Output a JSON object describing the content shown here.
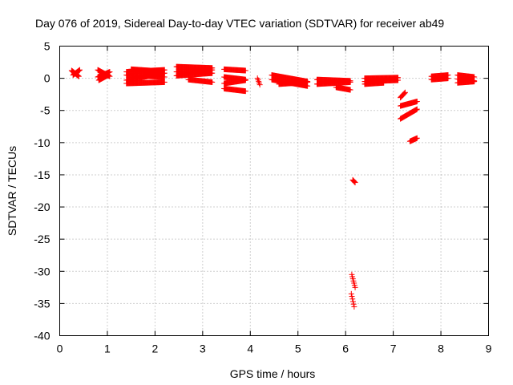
{
  "chart_data": {
    "type": "scatter",
    "title": "Day 076 of 2019, Sidereal Day-to-day VTEC variation (SDTVAR) for receiver ab49",
    "xlabel": "GPS time / hours",
    "ylabel": "SDTVAR / TECUs",
    "xlim": [
      0,
      9
    ],
    "ylim": [
      -40,
      5
    ],
    "xticks": [
      0,
      1,
      2,
      3,
      4,
      5,
      6,
      7,
      8,
      9
    ],
    "yticks": [
      5,
      0,
      -5,
      -10,
      -15,
      -20,
      -25,
      -30,
      -35,
      -40
    ],
    "grid": true,
    "marker": "plus",
    "color": "#ff0000",
    "series": [
      {
        "name": "SDTVAR",
        "segments": [
          {
            "x0": 0.25,
            "x1": 0.4,
            "y0": 1.2,
            "y1": 0.3
          },
          {
            "x0": 0.28,
            "x1": 0.42,
            "y0": 0.5,
            "y1": 1.3
          },
          {
            "x0": 0.8,
            "x1": 1.05,
            "y0": 1.3,
            "y1": 0.3
          },
          {
            "x0": 0.8,
            "x1": 1.05,
            "y0": 0.2,
            "y1": 1.0
          },
          {
            "x0": 0.82,
            "x1": 1.02,
            "y0": -0.3,
            "y1": 0.5
          },
          {
            "x0": 1.4,
            "x1": 2.2,
            "y0": 1.0,
            "y1": 1.3
          },
          {
            "x0": 1.4,
            "x1": 2.2,
            "y0": 0.5,
            "y1": 0.2
          },
          {
            "x0": 1.4,
            "x1": 2.2,
            "y0": -0.3,
            "y1": 0.8
          },
          {
            "x0": 1.4,
            "x1": 2.2,
            "y0": -0.8,
            "y1": -0.6
          },
          {
            "x0": 1.5,
            "x1": 2.1,
            "y0": 1.4,
            "y1": 1.1
          },
          {
            "x0": 2.45,
            "x1": 3.2,
            "y0": 1.8,
            "y1": 1.6
          },
          {
            "x0": 2.45,
            "x1": 3.2,
            "y0": 1.0,
            "y1": 1.3
          },
          {
            "x0": 2.45,
            "x1": 3.2,
            "y0": 0.4,
            "y1": 0.8
          },
          {
            "x0": 2.7,
            "x1": 3.2,
            "y0": -0.2,
            "y1": -0.6
          },
          {
            "x0": 3.45,
            "x1": 3.9,
            "y0": 1.4,
            "y1": 1.2
          },
          {
            "x0": 3.45,
            "x1": 3.9,
            "y0": 0.2,
            "y1": -0.2
          },
          {
            "x0": 3.45,
            "x1": 3.9,
            "y0": -0.8,
            "y1": -0.3
          },
          {
            "x0": 3.45,
            "x1": 3.9,
            "y0": -1.6,
            "y1": -2.0
          },
          {
            "x0": 4.15,
            "x1": 4.2,
            "y0": 0.0,
            "y1": -1.0
          },
          {
            "x0": 4.45,
            "x1": 5.2,
            "y0": 0.5,
            "y1": -0.5
          },
          {
            "x0": 4.45,
            "x1": 5.2,
            "y0": -0.2,
            "y1": -1.2
          },
          {
            "x0": 4.6,
            "x1": 5.2,
            "y0": -0.9,
            "y1": -0.6
          },
          {
            "x0": 5.4,
            "x1": 6.1,
            "y0": -0.2,
            "y1": -0.4
          },
          {
            "x0": 5.4,
            "x1": 6.1,
            "y0": -0.9,
            "y1": -0.6
          },
          {
            "x0": 5.8,
            "x1": 6.1,
            "y0": -1.4,
            "y1": -1.8
          },
          {
            "x0": 6.15,
            "x1": 6.2,
            "y0": -15.8,
            "y1": -16.2
          },
          {
            "x0": 6.13,
            "x1": 6.2,
            "y0": -30.5,
            "y1": -32.5
          },
          {
            "x0": 6.12,
            "x1": 6.18,
            "y0": -33.5,
            "y1": -35.5
          },
          {
            "x0": 6.4,
            "x1": 7.1,
            "y0": 0.0,
            "y1": 0.1
          },
          {
            "x0": 6.4,
            "x1": 7.1,
            "y0": -0.5,
            "y1": -0.3
          },
          {
            "x0": 6.4,
            "x1": 6.8,
            "y0": -0.9,
            "y1": -0.7
          },
          {
            "x0": 7.15,
            "x1": 7.25,
            "y0": -3.0,
            "y1": -2.2
          },
          {
            "x0": 7.15,
            "x1": 7.5,
            "y0": -4.3,
            "y1": -3.6
          },
          {
            "x0": 7.15,
            "x1": 7.5,
            "y0": -6.3,
            "y1": -4.8
          },
          {
            "x0": 7.35,
            "x1": 7.5,
            "y0": -9.8,
            "y1": -9.3
          },
          {
            "x0": 7.8,
            "x1": 8.15,
            "y0": 0.3,
            "y1": 0.5
          },
          {
            "x0": 7.8,
            "x1": 8.15,
            "y0": -0.2,
            "y1": 0.0
          },
          {
            "x0": 8.35,
            "x1": 8.7,
            "y0": 0.5,
            "y1": 0.2
          },
          {
            "x0": 8.35,
            "x1": 8.7,
            "y0": -0.1,
            "y1": -0.4
          },
          {
            "x0": 8.35,
            "x1": 8.7,
            "y0": -0.7,
            "y1": -0.5
          }
        ]
      }
    ]
  }
}
